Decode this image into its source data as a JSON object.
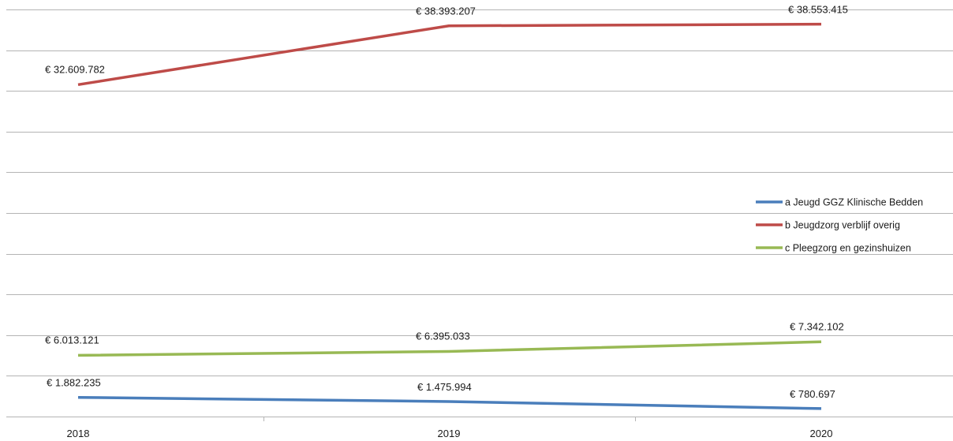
{
  "chart_data": {
    "type": "line",
    "categories": [
      "2018",
      "2019",
      "2020"
    ],
    "ylim": [
      0,
      40000000
    ],
    "y_tick_step": 4000000,
    "grid": true,
    "legend_position": "right",
    "series": [
      {
        "name": "a Jeugd GGZ Klinische Bedden",
        "color": "#4a7ebb",
        "values": [
          1882235,
          1475994,
          780697
        ],
        "labels": [
          "€ 1.882.235",
          "€ 1.475.994",
          "€ 780.697"
        ]
      },
      {
        "name": "b Jeugdzorg verblijf overig",
        "color": "#be4b48",
        "values": [
          32609782,
          38393207,
          38553415
        ],
        "labels": [
          "€ 32.609.782",
          "€ 38.393.207",
          "€ 38.553.415"
        ]
      },
      {
        "name": "c Pleegzorg en gezinshuizen",
        "color": "#98b954",
        "values": [
          6013121,
          6395033,
          7342102
        ],
        "labels": [
          "€ 6.013.121",
          "€ 6.395.033",
          "€ 7.342.102"
        ]
      }
    ]
  }
}
